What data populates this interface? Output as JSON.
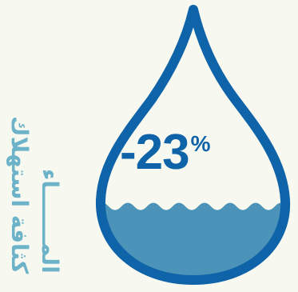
{
  "infographic": {
    "title_lines": [
      "كثافة استهلاك",
      "المـــــــاء"
    ],
    "value": "-23",
    "unit": "%"
  },
  "colors": {
    "background": "#f7f8ef",
    "drop_outline": "#0f63a8",
    "water_fill": "#4b93b9",
    "title_text": "#6cb3c9",
    "value_text": "#0f63a8"
  },
  "icons": {
    "main": "water-drop-icon",
    "fill": "water-level-icon"
  }
}
